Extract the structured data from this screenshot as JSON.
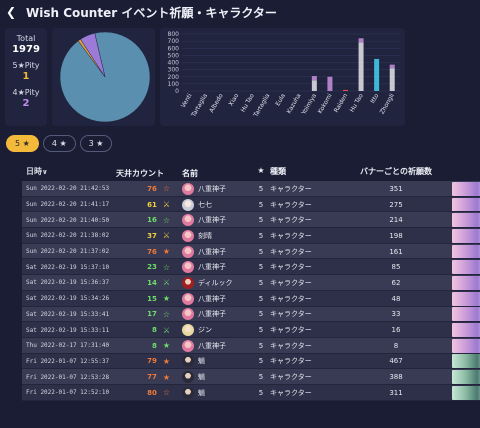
{
  "app": {
    "title": "Wish Counter",
    "subtitle": "イベント祈願・キャラクター"
  },
  "stats": {
    "total_label": "Total",
    "total_value": "1979",
    "five_label": "5★Pity",
    "five_value": "1",
    "four_label": "4★Pity",
    "four_value": "2"
  },
  "pie": {
    "slices": [
      {
        "name": "blue",
        "value": 0.935,
        "color": "#5b8fb0"
      },
      {
        "name": "orange",
        "value": 0.01,
        "color": "#e0a040"
      },
      {
        "name": "purple",
        "value": 0.055,
        "color": "#9b7ad8"
      }
    ]
  },
  "chart_data": {
    "type": "bar",
    "categories": [
      "Venti",
      "Tartaglia",
      "Albedo",
      "Xiao",
      "Hu Tao",
      "Tartaglia",
      "Eula",
      "Kazuha",
      "Yoimiya",
      "Kokomi",
      "Raiden",
      "Hu Tao",
      "Itto",
      "Zhongli"
    ],
    "series": [
      {
        "color": "#c8c8d0",
        "values": [
          0,
          0,
          0,
          0,
          0,
          0,
          0,
          0,
          150,
          0,
          0,
          680,
          0,
          320
        ]
      },
      {
        "color": "#e0b080",
        "values": [
          0,
          0,
          0,
          0,
          0,
          0,
          0,
          0,
          0,
          0,
          0,
          0,
          0,
          0
        ]
      },
      {
        "color": "#b080c8",
        "values": [
          0,
          0,
          0,
          0,
          0,
          0,
          0,
          0,
          60,
          200,
          0,
          60,
          0,
          50
        ]
      },
      {
        "color": "#40b8d8",
        "values": [
          0,
          0,
          0,
          0,
          0,
          0,
          0,
          0,
          0,
          0,
          0,
          0,
          450,
          0
        ]
      },
      {
        "color": "#e05050",
        "values": [
          0,
          0,
          0,
          0,
          0,
          0,
          0,
          0,
          0,
          0,
          15,
          0,
          0,
          0
        ]
      }
    ],
    "ylim": [
      0,
      800
    ],
    "yticks": [
      "800",
      "700",
      "600",
      "500",
      "400",
      "300",
      "200",
      "100",
      "0"
    ],
    "grid": true
  },
  "filters": [
    {
      "label": "5 ★",
      "active": true
    },
    {
      "label": "4 ★",
      "active": false
    },
    {
      "label": "3 ★",
      "active": false
    }
  ],
  "table": {
    "headers": {
      "date": "日時",
      "pity": "天井カウント",
      "name": "名前",
      "rarity": "★",
      "type": "種類",
      "count": "バナーごとの祈願数"
    },
    "rows": [
      {
        "date": "Sun 2022-02-20 21:42:53",
        "pity": "76",
        "pity_class": "pity-orange",
        "icon": "☆",
        "icon_name": "star-outline-icon",
        "avatar": "",
        "name": "八重神子",
        "rarity": "5",
        "type": "キャラクター",
        "count": "351",
        "banner": ""
      },
      {
        "date": "Sun 2022-02-20 21:41:17",
        "pity": "61",
        "pity_class": "pity-yellow",
        "icon": "⚔",
        "icon_name": "lose-icon",
        "avatar": "a-white",
        "name": "七七",
        "rarity": "5",
        "type": "キャラクター",
        "count": "275",
        "banner": ""
      },
      {
        "date": "Sun 2022-02-20 21:40:50",
        "pity": "16",
        "pity_class": "pity-green",
        "icon": "☆",
        "icon_name": "star-outline-icon",
        "avatar": "",
        "name": "八重神子",
        "rarity": "5",
        "type": "キャラクター",
        "count": "214",
        "banner": ""
      },
      {
        "date": "Sun 2022-02-20 21:38:02",
        "pity": "37",
        "pity_class": "pity-yellow",
        "icon": "⚔",
        "icon_name": "lose-icon",
        "avatar": "",
        "name": "刻晴",
        "rarity": "5",
        "type": "キャラクター",
        "count": "198",
        "banner": ""
      },
      {
        "date": "Sun 2022-02-20 21:37:02",
        "pity": "76",
        "pity_class": "pity-orange",
        "icon": "★",
        "icon_name": "star-filled-icon",
        "avatar": "",
        "name": "八重神子",
        "rarity": "5",
        "type": "キャラクター",
        "count": "161",
        "banner": ""
      },
      {
        "date": "Sat 2022-02-19 15:37:10",
        "pity": "23",
        "pity_class": "pity-green",
        "icon": "☆",
        "icon_name": "star-outline-icon",
        "avatar": "",
        "name": "八重神子",
        "rarity": "5",
        "type": "キャラクター",
        "count": "85",
        "banner": ""
      },
      {
        "date": "Sat 2022-02-19 15:36:37",
        "pity": "14",
        "pity_class": "pity-green",
        "icon": "⚔",
        "icon_name": "lose-icon",
        "avatar": "a-red",
        "name": "ディルック",
        "rarity": "5",
        "type": "キャラクター",
        "count": "62",
        "banner": ""
      },
      {
        "date": "Sat 2022-02-19 15:34:26",
        "pity": "15",
        "pity_class": "pity-green",
        "icon": "★",
        "icon_name": "star-filled-icon",
        "avatar": "",
        "name": "八重神子",
        "rarity": "5",
        "type": "キャラクター",
        "count": "48",
        "banner": ""
      },
      {
        "date": "Sat 2022-02-19 15:33:41",
        "pity": "17",
        "pity_class": "pity-green",
        "icon": "☆",
        "icon_name": "star-outline-icon",
        "avatar": "",
        "name": "八重神子",
        "rarity": "5",
        "type": "キャラクター",
        "count": "33",
        "banner": ""
      },
      {
        "date": "Sat 2022-02-19 15:33:11",
        "pity": "8",
        "pity_class": "pity-green",
        "icon": "⚔",
        "icon_name": "lose-icon",
        "avatar": "a-blonde",
        "name": "ジン",
        "rarity": "5",
        "type": "キャラクター",
        "count": "16",
        "banner": ""
      },
      {
        "date": "Thu 2022-02-17 17:31:40",
        "pity": "8",
        "pity_class": "pity-green",
        "icon": "★",
        "icon_name": "star-filled-icon",
        "avatar": "",
        "name": "八重神子",
        "rarity": "5",
        "type": "キャラクター",
        "count": "8",
        "banner": ""
      },
      {
        "date": "Fri 2022-01-07 12:55:37",
        "pity": "79",
        "pity_class": "pity-orange",
        "icon": "★",
        "icon_name": "star-filled-icon",
        "avatar": "a-dark",
        "name": "魈",
        "rarity": "5",
        "type": "キャラクター",
        "count": "467",
        "banner": "b-green"
      },
      {
        "date": "Fri 2022-01-07 12:53:28",
        "pity": "77",
        "pity_class": "pity-orange",
        "icon": "★",
        "icon_name": "star-filled-icon",
        "avatar": "a-dark",
        "name": "魈",
        "rarity": "5",
        "type": "キャラクター",
        "count": "388",
        "banner": "b-green"
      },
      {
        "date": "Fri 2022-01-07 12:52:10",
        "pity": "80",
        "pity_class": "pity-orange",
        "icon": "☆",
        "icon_name": "star-outline-icon",
        "avatar": "a-dark",
        "name": "魈",
        "rarity": "5",
        "type": "キャラクター",
        "count": "311",
        "banner": "b-green"
      }
    ]
  }
}
